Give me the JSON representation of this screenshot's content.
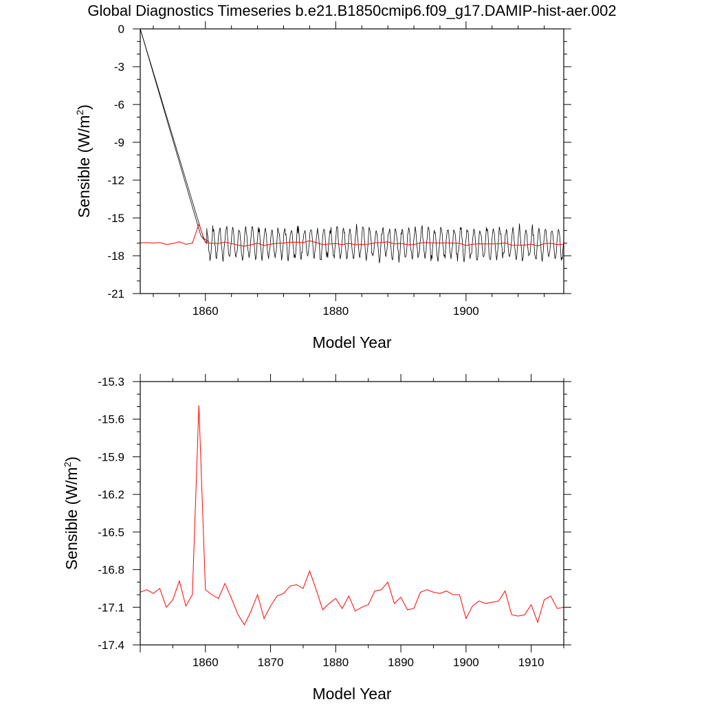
{
  "title": "Global Diagnostics Timeseries b.e21.B1850cmip6.f09_g17.DAMIP-hist-aer.002",
  "colors": {
    "monthly": "#000000",
    "annual": "#ff0000",
    "frame": "#000000"
  },
  "chart_data": [
    {
      "type": "line",
      "xlabel": "Model Year",
      "ylabel": "Sensible (W/m",
      "ylabel_sup": "2",
      "ylabel_close": ")",
      "xlim": [
        1850,
        1915
      ],
      "ylim": [
        -21,
        0
      ],
      "xticks": [
        1860,
        1880,
        1900
      ],
      "xtick_labels": [
        "1860",
        "1880",
        "1900"
      ],
      "yticks": [
        0,
        -3,
        -6,
        -9,
        -12,
        -15,
        -18,
        -21
      ],
      "ytick_labels": [
        "0",
        "-3",
        "-6",
        "-9",
        "-12",
        "-15",
        "-18",
        "-21"
      ],
      "series": [
        {
          "style": "monthly seasonal cycle, black thin line (startup ramp from 0 to ~-16.5 over 1850-1860)",
          "ramp": [
            [
              1850,
              0
            ],
            [
              1859.3,
              -16.4
            ],
            [
              1860.2,
              -17.0
            ]
          ],
          "cycle_center": -17.0,
          "cycle_amplitude": 1.1,
          "cycle_period_years": 1.0
        },
        {
          "style": "annual mean, red line",
          "ref": "annual"
        }
      ]
    },
    {
      "type": "line",
      "xlabel": "Model Year",
      "ylabel": "Sensible (W/m",
      "ylabel_sup": "2",
      "ylabel_close": ")",
      "xlim": [
        1850,
        1915
      ],
      "ylim": [
        -17.4,
        -15.3
      ],
      "xticks": [
        1860,
        1870,
        1880,
        1890,
        1900,
        1910
      ],
      "xtick_labels": [
        "1860",
        "1870",
        "1880",
        "1890",
        "1900",
        "1910"
      ],
      "yticks": [
        -15.3,
        -15.6,
        -15.9,
        -16.2,
        -16.5,
        -16.8,
        -17.1,
        -17.4
      ],
      "ytick_labels": [
        "-15.3",
        "-15.6",
        "-15.9",
        "-16.2",
        "-16.5",
        "-16.8",
        "-17.1",
        "-17.4"
      ],
      "annual": {
        "x": [
          1850,
          1851,
          1852,
          1853,
          1854,
          1855,
          1856,
          1857,
          1858,
          1859,
          1860,
          1861,
          1862,
          1863,
          1864,
          1865,
          1866,
          1867,
          1868,
          1869,
          1870,
          1871,
          1872,
          1873,
          1874,
          1875,
          1876,
          1877,
          1878,
          1879,
          1880,
          1881,
          1882,
          1883,
          1884,
          1885,
          1886,
          1887,
          1888,
          1889,
          1890,
          1891,
          1892,
          1893,
          1894,
          1895,
          1896,
          1897,
          1898,
          1899,
          1900,
          1901,
          1902,
          1903,
          1904,
          1905,
          1906,
          1907,
          1908,
          1909,
          1910,
          1911,
          1912,
          1913,
          1914,
          1915
        ],
        "y": [
          -16.98,
          -16.96,
          -16.99,
          -16.95,
          -17.1,
          -17.04,
          -16.89,
          -17.09,
          -17.0,
          -15.49,
          -16.96,
          -17.0,
          -17.03,
          -16.91,
          -17.03,
          -17.16,
          -17.24,
          -17.13,
          -17.0,
          -17.19,
          -17.09,
          -17.01,
          -16.99,
          -16.93,
          -16.92,
          -16.95,
          -16.81,
          -16.96,
          -17.12,
          -17.07,
          -17.03,
          -17.11,
          -17.01,
          -17.13,
          -17.1,
          -17.08,
          -16.97,
          -16.96,
          -16.9,
          -17.07,
          -17.02,
          -17.12,
          -17.11,
          -16.98,
          -16.96,
          -16.98,
          -16.99,
          -16.97,
          -17.0,
          -17.0,
          -17.19,
          -17.09,
          -17.05,
          -17.07,
          -17.06,
          -17.05,
          -16.97,
          -17.16,
          -17.17,
          -17.16,
          -17.08,
          -17.22,
          -17.04,
          -17.01,
          -17.11,
          -17.1
        ]
      }
    }
  ]
}
